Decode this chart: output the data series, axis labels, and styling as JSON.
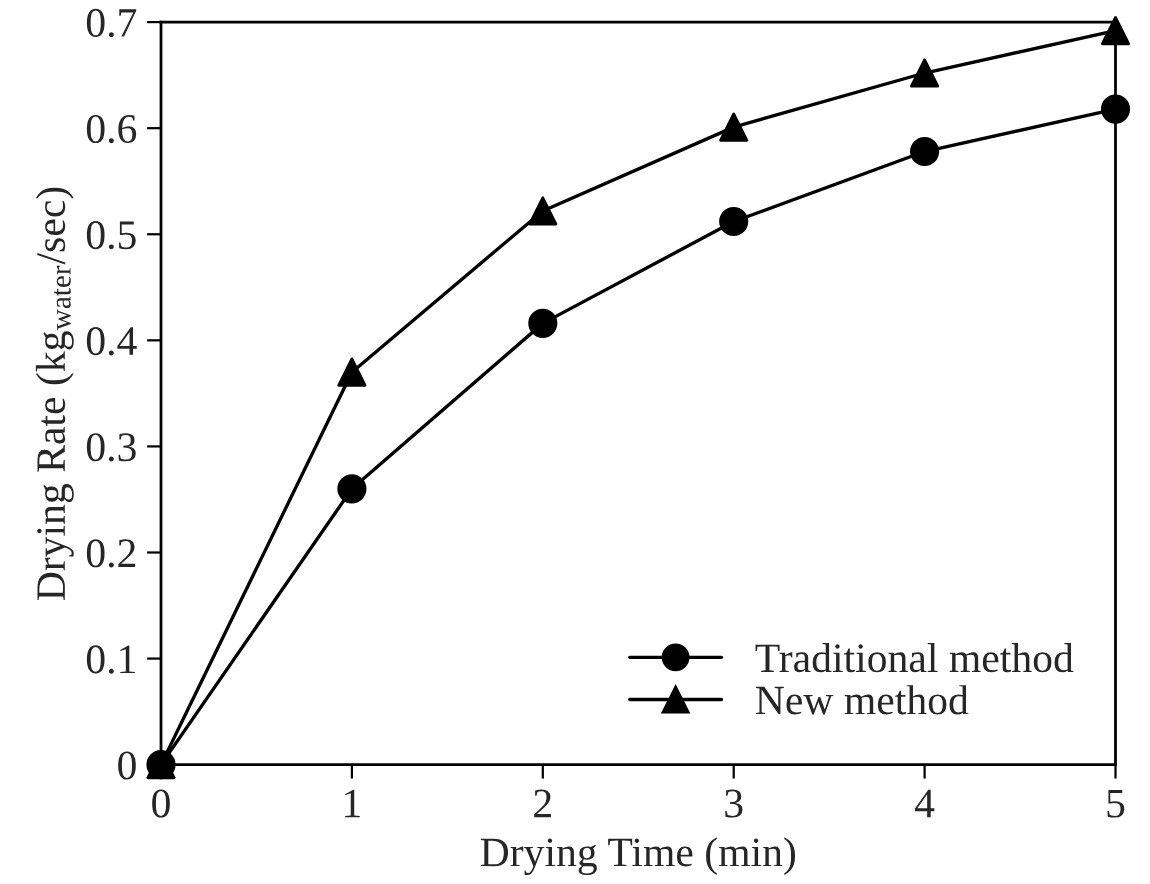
{
  "chart_data": {
    "type": "line",
    "xlabel": "Drying Time (min)",
    "ylabel": "Drying Rate (kg$_{water}$/sec)",
    "x": [
      0,
      1,
      2,
      3,
      4,
      5
    ],
    "series": [
      {
        "name": "Traditional method",
        "color": "#000000",
        "marker": "circle",
        "values": [
          0,
          0.26,
          0.416,
          0.512,
          0.578,
          0.618
        ]
      },
      {
        "name": "New method",
        "color": "#000000",
        "marker": "triangle",
        "values": [
          0,
          0.37,
          0.522,
          0.601,
          0.652,
          0.692
        ]
      }
    ],
    "xlim": [
      0,
      5
    ],
    "xticks": [
      0,
      1,
      2,
      3,
      4,
      5
    ],
    "ylim": [
      0,
      0.7
    ],
    "yticks": [
      0,
      0.1,
      0.2,
      0.3,
      0.4,
      0.5,
      0.6,
      0.7
    ],
    "grid": false,
    "legend": "bottom right",
    "line_style": "solid"
  }
}
